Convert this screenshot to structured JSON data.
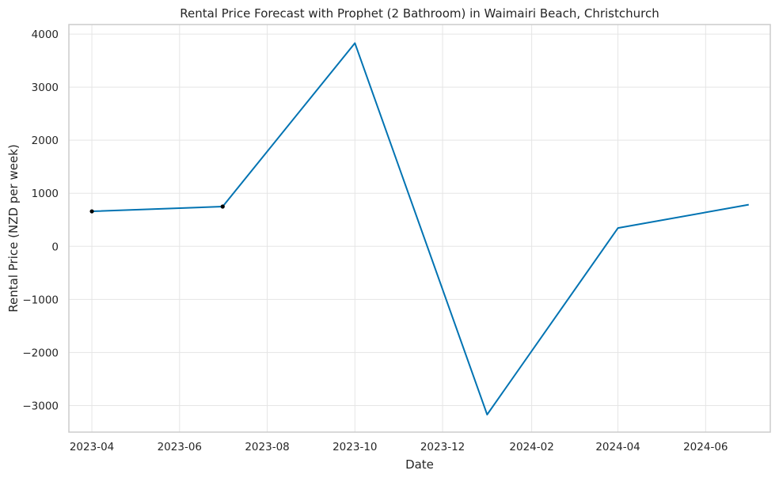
{
  "chart_data": {
    "type": "line",
    "title": "Rental Price Forecast with Prophet (2 Bathroom) in Waimairi Beach, Christchurch",
    "xlabel": "Date",
    "ylabel": "Rental Price (NZD per week)",
    "x_ticks": [
      "2023-04",
      "2023-06",
      "2023-08",
      "2023-10",
      "2023-12",
      "2024-02",
      "2024-04",
      "2024-06"
    ],
    "y_ticks": [
      4000,
      3000,
      2000,
      1000,
      0,
      -1000,
      -2000,
      -3000
    ],
    "y_tick_labels": [
      "4000",
      "3000",
      "2000",
      "1000",
      "0",
      "−1000",
      "−2000",
      "−3000"
    ],
    "xlim": [
      "2023-03-16",
      "2024-07-16"
    ],
    "ylim": [
      -3500,
      4180
    ],
    "grid": true,
    "legend": "none",
    "series": [
      {
        "values": [
          {
            "x": "2023-04-01",
            "y": 660
          },
          {
            "x": "2023-07-01",
            "y": 750
          },
          {
            "x": "2023-10-01",
            "y": 3830
          },
          {
            "x": "2024-01-01",
            "y": -3170
          },
          {
            "x": "2024-04-01",
            "y": 345
          },
          {
            "x": "2024-07-01",
            "y": 785
          }
        ],
        "color": "#0173b2"
      }
    ],
    "observed_points": [
      {
        "x": "2023-04-01",
        "y": 660
      },
      {
        "x": "2023-07-01",
        "y": 750
      }
    ],
    "observed_color": "#000000",
    "grid_color": "#e5e5e5",
    "frame_color": "#cccccc"
  }
}
